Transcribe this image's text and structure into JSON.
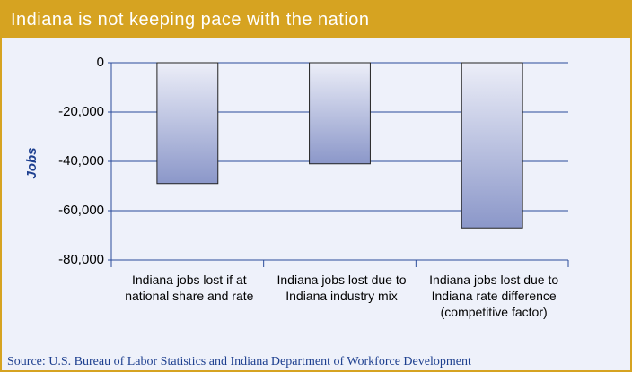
{
  "chart_data": {
    "type": "bar",
    "title": "Indiana is not keeping pace with the nation",
    "y_label": "Jobs",
    "categories": [
      "Indiana jobs lost if at national share and rate",
      "Indiana jobs lost due to Indiana industry mix",
      "Indiana jobs lost due to Indiana rate difference (competitive factor)"
    ],
    "values": [
      -49000,
      -41000,
      -67000
    ],
    "color": "#8b97c9",
    "ylim": [
      -80000,
      0
    ],
    "yticks": [
      0,
      {
        "value": -20000,
        "label": "-20,000"
      },
      {
        "value": -40000,
        "label": "-40,000"
      },
      {
        "value": -60000,
        "label": "-60,000"
      },
      {
        "value": -80000,
        "label": "-80,000"
      }
    ],
    "grid": true,
    "source": "Source: U.S. Bureau of Labor Statistics and Indiana Department of Workforce Development"
  }
}
